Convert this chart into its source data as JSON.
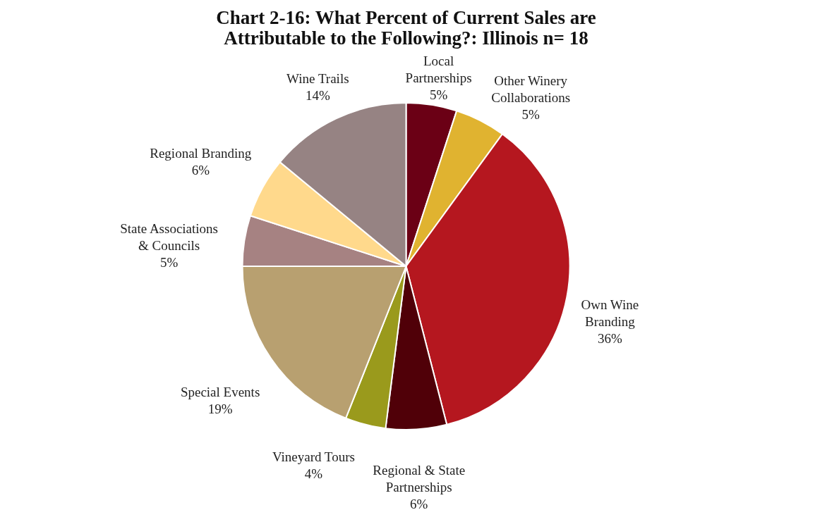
{
  "chart_data": {
    "type": "pie",
    "title": "Chart 2-16:  What Percent of Current Sales are\nAttributable to the Following?: Illinois  n= 18",
    "categories": [
      "Local\nPartnerships",
      "Other Winery\nCollaborations",
      "Own Wine\nBranding",
      "Regional & State\nPartnerships",
      "Vineyard Tours",
      "Special Events",
      "State Associations\n& Councils",
      "Regional Branding",
      "Wine Trails"
    ],
    "values": [
      5,
      5,
      36,
      6,
      4,
      19,
      5,
      6,
      14
    ],
    "value_labels": [
      "5%",
      "5%",
      "36%",
      "6%",
      "4%",
      "19%",
      "5%",
      "6%",
      "14%"
    ],
    "colors": [
      "#6b0015",
      "#e0b330",
      "#b5171f",
      "#500008",
      "#9a9a1c",
      "#b8a070",
      "#a68282",
      "#ffd98c",
      "#968383"
    ],
    "legend": false
  }
}
